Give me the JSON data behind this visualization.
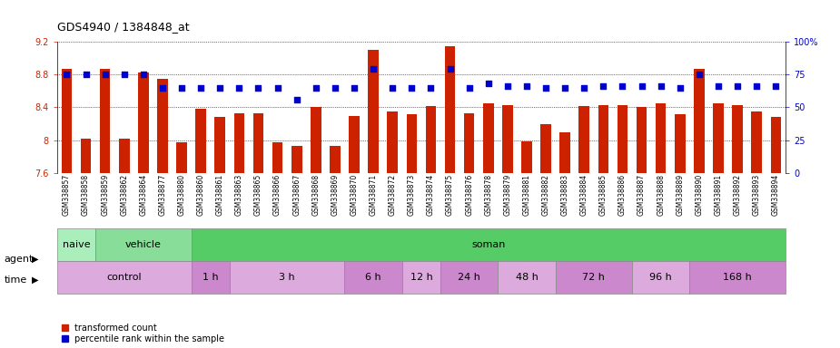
{
  "title": "GDS4940 / 1384848_at",
  "samples": [
    "GSM338857",
    "GSM338858",
    "GSM338859",
    "GSM338862",
    "GSM338864",
    "GSM338877",
    "GSM338880",
    "GSM338860",
    "GSM338861",
    "GSM338863",
    "GSM338865",
    "GSM338866",
    "GSM338867",
    "GSM338868",
    "GSM338869",
    "GSM338870",
    "GSM338871",
    "GSM338872",
    "GSM338873",
    "GSM338874",
    "GSM338875",
    "GSM338876",
    "GSM338878",
    "GSM338879",
    "GSM338881",
    "GSM338882",
    "GSM338883",
    "GSM338884",
    "GSM338885",
    "GSM338886",
    "GSM338887",
    "GSM338888",
    "GSM338889",
    "GSM338890",
    "GSM338891",
    "GSM338892",
    "GSM338893",
    "GSM338894"
  ],
  "bar_values": [
    8.87,
    8.02,
    8.87,
    8.02,
    8.82,
    8.75,
    7.97,
    8.38,
    8.28,
    8.33,
    8.33,
    7.97,
    7.93,
    8.4,
    7.93,
    8.3,
    9.1,
    8.35,
    8.32,
    8.42,
    9.15,
    8.33,
    8.45,
    8.43,
    7.98,
    8.2,
    8.1,
    8.42,
    8.43,
    8.43,
    8.4,
    8.45,
    8.32,
    8.87,
    8.45,
    8.43,
    8.35,
    8.28
  ],
  "percentile_values": [
    75,
    75,
    75,
    75,
    75,
    65,
    65,
    65,
    65,
    65,
    65,
    65,
    56,
    65,
    65,
    65,
    79,
    65,
    65,
    65,
    79,
    65,
    68,
    66,
    66,
    65,
    65,
    65,
    66,
    66,
    66,
    66,
    65,
    75,
    66,
    66,
    66,
    66
  ],
  "ylim": [
    7.6,
    9.2
  ],
  "yticks": [
    7.6,
    8.0,
    8.4,
    8.8,
    9.2
  ],
  "ytick_labels": [
    "7.6",
    "8",
    "8.4",
    "8.8",
    "9.2"
  ],
  "right_yticks": [
    0,
    25,
    50,
    75,
    100
  ],
  "right_ytick_labels": [
    "0",
    "25",
    "50",
    "75",
    "100%"
  ],
  "bar_color": "#cc2200",
  "dot_color": "#0000cc",
  "bg_color": "#f0f0f0",
  "agent_groups": [
    {
      "label": "naive",
      "start": 0,
      "end": 2,
      "color": "#aaeebb"
    },
    {
      "label": "vehicle",
      "start": 2,
      "end": 7,
      "color": "#88dd99"
    },
    {
      "label": "soman",
      "start": 7,
      "end": 38,
      "color": "#55cc66"
    }
  ],
  "time_groups": [
    {
      "label": "control",
      "start": 0,
      "end": 7,
      "color": "#ddaadd"
    },
    {
      "label": "1 h",
      "start": 7,
      "end": 9,
      "color": "#cc88cc"
    },
    {
      "label": "3 h",
      "start": 9,
      "end": 15,
      "color": "#ddaadd"
    },
    {
      "label": "6 h",
      "start": 15,
      "end": 18,
      "color": "#cc88cc"
    },
    {
      "label": "12 h",
      "start": 18,
      "end": 20,
      "color": "#ddaadd"
    },
    {
      "label": "24 h",
      "start": 20,
      "end": 23,
      "color": "#cc88cc"
    },
    {
      "label": "48 h",
      "start": 23,
      "end": 26,
      "color": "#ddaadd"
    },
    {
      "label": "72 h",
      "start": 26,
      "end": 30,
      "color": "#cc88cc"
    },
    {
      "label": "96 h",
      "start": 30,
      "end": 33,
      "color": "#ddaadd"
    },
    {
      "label": "168 h",
      "start": 33,
      "end": 38,
      "color": "#cc88cc"
    }
  ],
  "legend_labels": [
    "transformed count",
    "percentile rank within the sample"
  ],
  "title_fontsize": 9,
  "tick_fontsize": 7,
  "sample_fontsize": 5.5,
  "label_fontsize": 8,
  "row_label_fontsize": 8
}
